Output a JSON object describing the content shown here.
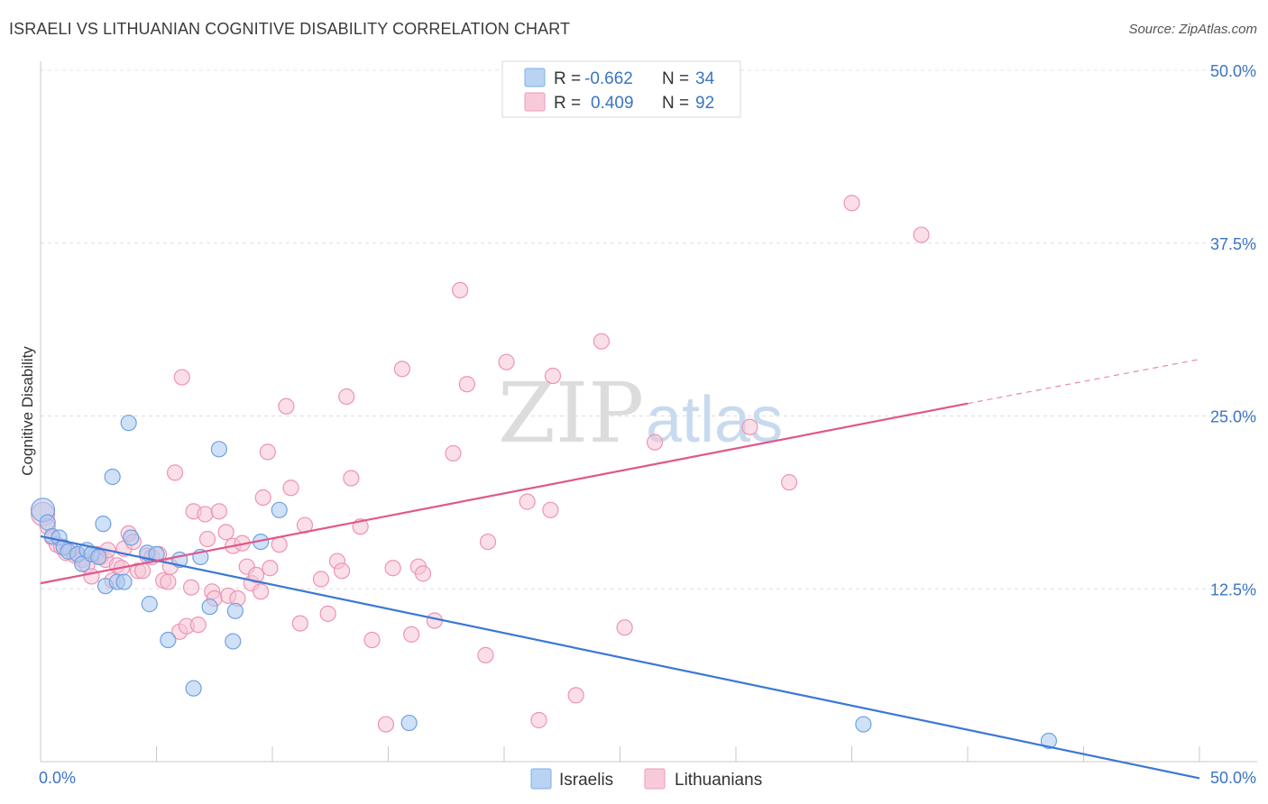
{
  "title": "ISRAELI VS LITHUANIAN COGNITIVE DISABILITY CORRELATION CHART",
  "source": "Source: ZipAtlas.com",
  "watermark": {
    "zip": "ZIP",
    "atlas": "atlas"
  },
  "legend": {
    "r_label": "R =",
    "n_label": "N =",
    "entries": [
      {
        "r": "-0.662",
        "n": "34",
        "color": "#7eaee8"
      },
      {
        "r": "0.409",
        "n": "92",
        "color": "#f19ab8"
      }
    ]
  },
  "bottom_legend": [
    {
      "label": "Israelis",
      "color": "#7eaee8"
    },
    {
      "label": "Lithuanians",
      "color": "#f19ab8"
    }
  ],
  "chart_data": {
    "type": "scatter",
    "title": "ISRAELI VS LITHUANIAN COGNITIVE DISABILITY CORRELATION CHART",
    "xlabel": "",
    "ylabel": "Cognitive Disability",
    "xlim": [
      0,
      50
    ],
    "ylim": [
      0,
      50
    ],
    "x_tick_labels": [
      "0.0%",
      "50.0%"
    ],
    "y_ticks": [
      12.5,
      25.0,
      37.5,
      50.0
    ],
    "y_tick_labels": [
      "12.5%",
      "25.0%",
      "37.5%",
      "50.0%"
    ],
    "grid": true,
    "legend_position": "top-center",
    "series": [
      {
        "name": "Israelis",
        "color": "#3a78d4",
        "fill": "#a9c9f0",
        "r": -0.662,
        "n": 34,
        "trend": {
          "x": [
            0,
            50
          ],
          "y": [
            16.3,
            -1.2
          ]
        },
        "points": [
          [
            0.1,
            18.2
          ],
          [
            0.3,
            17.3
          ],
          [
            0.5,
            16.3
          ],
          [
            0.8,
            16.2
          ],
          [
            1.0,
            15.5
          ],
          [
            1.2,
            15.2
          ],
          [
            1.6,
            15.0
          ],
          [
            1.8,
            14.3
          ],
          [
            2.0,
            15.3
          ],
          [
            2.2,
            15.0
          ],
          [
            2.5,
            14.8
          ],
          [
            2.7,
            17.2
          ],
          [
            2.8,
            12.7
          ],
          [
            3.1,
            20.6
          ],
          [
            3.3,
            13.0
          ],
          [
            3.6,
            13.0
          ],
          [
            3.8,
            24.5
          ],
          [
            3.9,
            16.2
          ],
          [
            4.6,
            15.1
          ],
          [
            5.0,
            15.0
          ],
          [
            4.7,
            11.4
          ],
          [
            5.5,
            8.8
          ],
          [
            6.0,
            14.6
          ],
          [
            6.6,
            5.3
          ],
          [
            6.9,
            14.8
          ],
          [
            7.3,
            11.2
          ],
          [
            7.7,
            22.6
          ],
          [
            8.3,
            8.7
          ],
          [
            8.4,
            10.9
          ],
          [
            9.5,
            15.9
          ],
          [
            10.3,
            18.2
          ],
          [
            15.9,
            2.8
          ],
          [
            35.5,
            2.7
          ],
          [
            43.5,
            1.5
          ]
        ]
      },
      {
        "name": "Lithuanians",
        "color": "#e0578a",
        "fill": "#f6c4d5",
        "r": 0.409,
        "n": 92,
        "trend": {
          "x": [
            0,
            40
          ],
          "y": [
            12.9,
            25.9
          ]
        },
        "trend_dashed": {
          "x": [
            40,
            50
          ],
          "y": [
            25.9,
            29.1
          ]
        },
        "points": [
          [
            0.1,
            17.9
          ],
          [
            0.3,
            17.0
          ],
          [
            0.5,
            16.2
          ],
          [
            0.7,
            15.7
          ],
          [
            0.9,
            15.5
          ],
          [
            1.1,
            15.1
          ],
          [
            1.3,
            15.3
          ],
          [
            1.5,
            14.9
          ],
          [
            1.8,
            14.6
          ],
          [
            2.0,
            14.2
          ],
          [
            2.2,
            13.4
          ],
          [
            2.4,
            15.0
          ],
          [
            2.6,
            14.8
          ],
          [
            2.8,
            14.6
          ],
          [
            2.9,
            15.3
          ],
          [
            3.1,
            13.1
          ],
          [
            3.3,
            14.2
          ],
          [
            3.5,
            14.0
          ],
          [
            3.6,
            15.4
          ],
          [
            3.8,
            16.5
          ],
          [
            4.0,
            15.9
          ],
          [
            4.2,
            13.8
          ],
          [
            4.4,
            13.8
          ],
          [
            4.6,
            14.9
          ],
          [
            4.8,
            14.8
          ],
          [
            5.1,
            15.0
          ],
          [
            5.3,
            13.1
          ],
          [
            5.5,
            13.0
          ],
          [
            5.6,
            14.1
          ],
          [
            5.8,
            20.9
          ],
          [
            6.0,
            9.4
          ],
          [
            6.1,
            27.8
          ],
          [
            6.3,
            9.8
          ],
          [
            6.5,
            12.6
          ],
          [
            6.6,
            18.1
          ],
          [
            6.8,
            9.9
          ],
          [
            7.1,
            17.9
          ],
          [
            7.2,
            16.1
          ],
          [
            7.4,
            12.3
          ],
          [
            7.5,
            11.8
          ],
          [
            7.7,
            18.1
          ],
          [
            8.0,
            16.6
          ],
          [
            8.1,
            12.0
          ],
          [
            8.3,
            15.6
          ],
          [
            8.5,
            11.8
          ],
          [
            8.7,
            15.8
          ],
          [
            8.9,
            14.1
          ],
          [
            9.1,
            12.9
          ],
          [
            9.3,
            13.5
          ],
          [
            9.6,
            19.1
          ],
          [
            9.5,
            12.3
          ],
          [
            9.8,
            22.4
          ],
          [
            9.9,
            14.0
          ],
          [
            10.3,
            15.7
          ],
          [
            10.6,
            25.7
          ],
          [
            10.8,
            19.8
          ],
          [
            11.2,
            10.0
          ],
          [
            11.4,
            17.1
          ],
          [
            12.1,
            13.2
          ],
          [
            12.4,
            10.7
          ],
          [
            12.8,
            14.5
          ],
          [
            13.0,
            13.8
          ],
          [
            13.2,
            26.4
          ],
          [
            13.4,
            20.5
          ],
          [
            13.8,
            17.0
          ],
          [
            14.3,
            8.8
          ],
          [
            14.9,
            2.7
          ],
          [
            15.2,
            14.0
          ],
          [
            15.6,
            28.4
          ],
          [
            16.0,
            9.2
          ],
          [
            16.3,
            14.1
          ],
          [
            16.5,
            13.6
          ],
          [
            17.0,
            10.2
          ],
          [
            17.8,
            22.3
          ],
          [
            18.1,
            34.1
          ],
          [
            18.4,
            27.3
          ],
          [
            19.2,
            7.7
          ],
          [
            19.3,
            15.9
          ],
          [
            20.1,
            28.9
          ],
          [
            21.0,
            18.8
          ],
          [
            21.5,
            3.0
          ],
          [
            22.0,
            18.2
          ],
          [
            22.1,
            27.9
          ],
          [
            23.1,
            4.8
          ],
          [
            24.2,
            30.4
          ],
          [
            25.2,
            9.7
          ],
          [
            26.5,
            23.1
          ],
          [
            30.6,
            24.2
          ],
          [
            32.3,
            20.2
          ],
          [
            35.0,
            40.4
          ],
          [
            38.0,
            38.1
          ],
          [
            1.6,
            15.0
          ]
        ]
      }
    ]
  }
}
